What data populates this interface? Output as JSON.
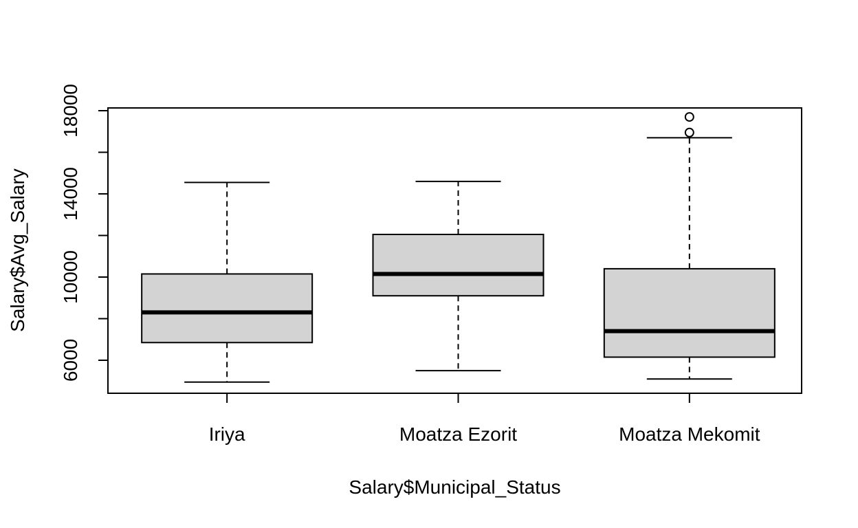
{
  "chart_data": {
    "type": "boxplot",
    "xlabel": "Salary$Municipal_Status",
    "ylabel": "Salary$Avg_Salary",
    "ylim": [
      4800,
      18300
    ],
    "y_ticks": [
      6000,
      10000,
      14000,
      18000
    ],
    "y_ticks_minor": [
      8000,
      12000,
      16000
    ],
    "categories": [
      "Iriya",
      "Moatza Ezorit",
      "Moatza Mekomit"
    ],
    "box_fill": "#d3d3d3",
    "stroke": "#000000",
    "series": [
      {
        "category": "Iriya",
        "whisker_low": 4950,
        "q1": 6850,
        "median": 8300,
        "q3": 10150,
        "whisker_high": 14550,
        "outliers": []
      },
      {
        "category": "Moatza Ezorit",
        "whisker_low": 5500,
        "q1": 9100,
        "median": 10150,
        "q3": 12050,
        "whisker_high": 14600,
        "outliers": []
      },
      {
        "category": "Moatza Mekomit",
        "whisker_low": 5100,
        "q1": 6150,
        "median": 7400,
        "q3": 10400,
        "whisker_high": 16700,
        "outliers": [
          16950,
          17700
        ]
      }
    ]
  }
}
